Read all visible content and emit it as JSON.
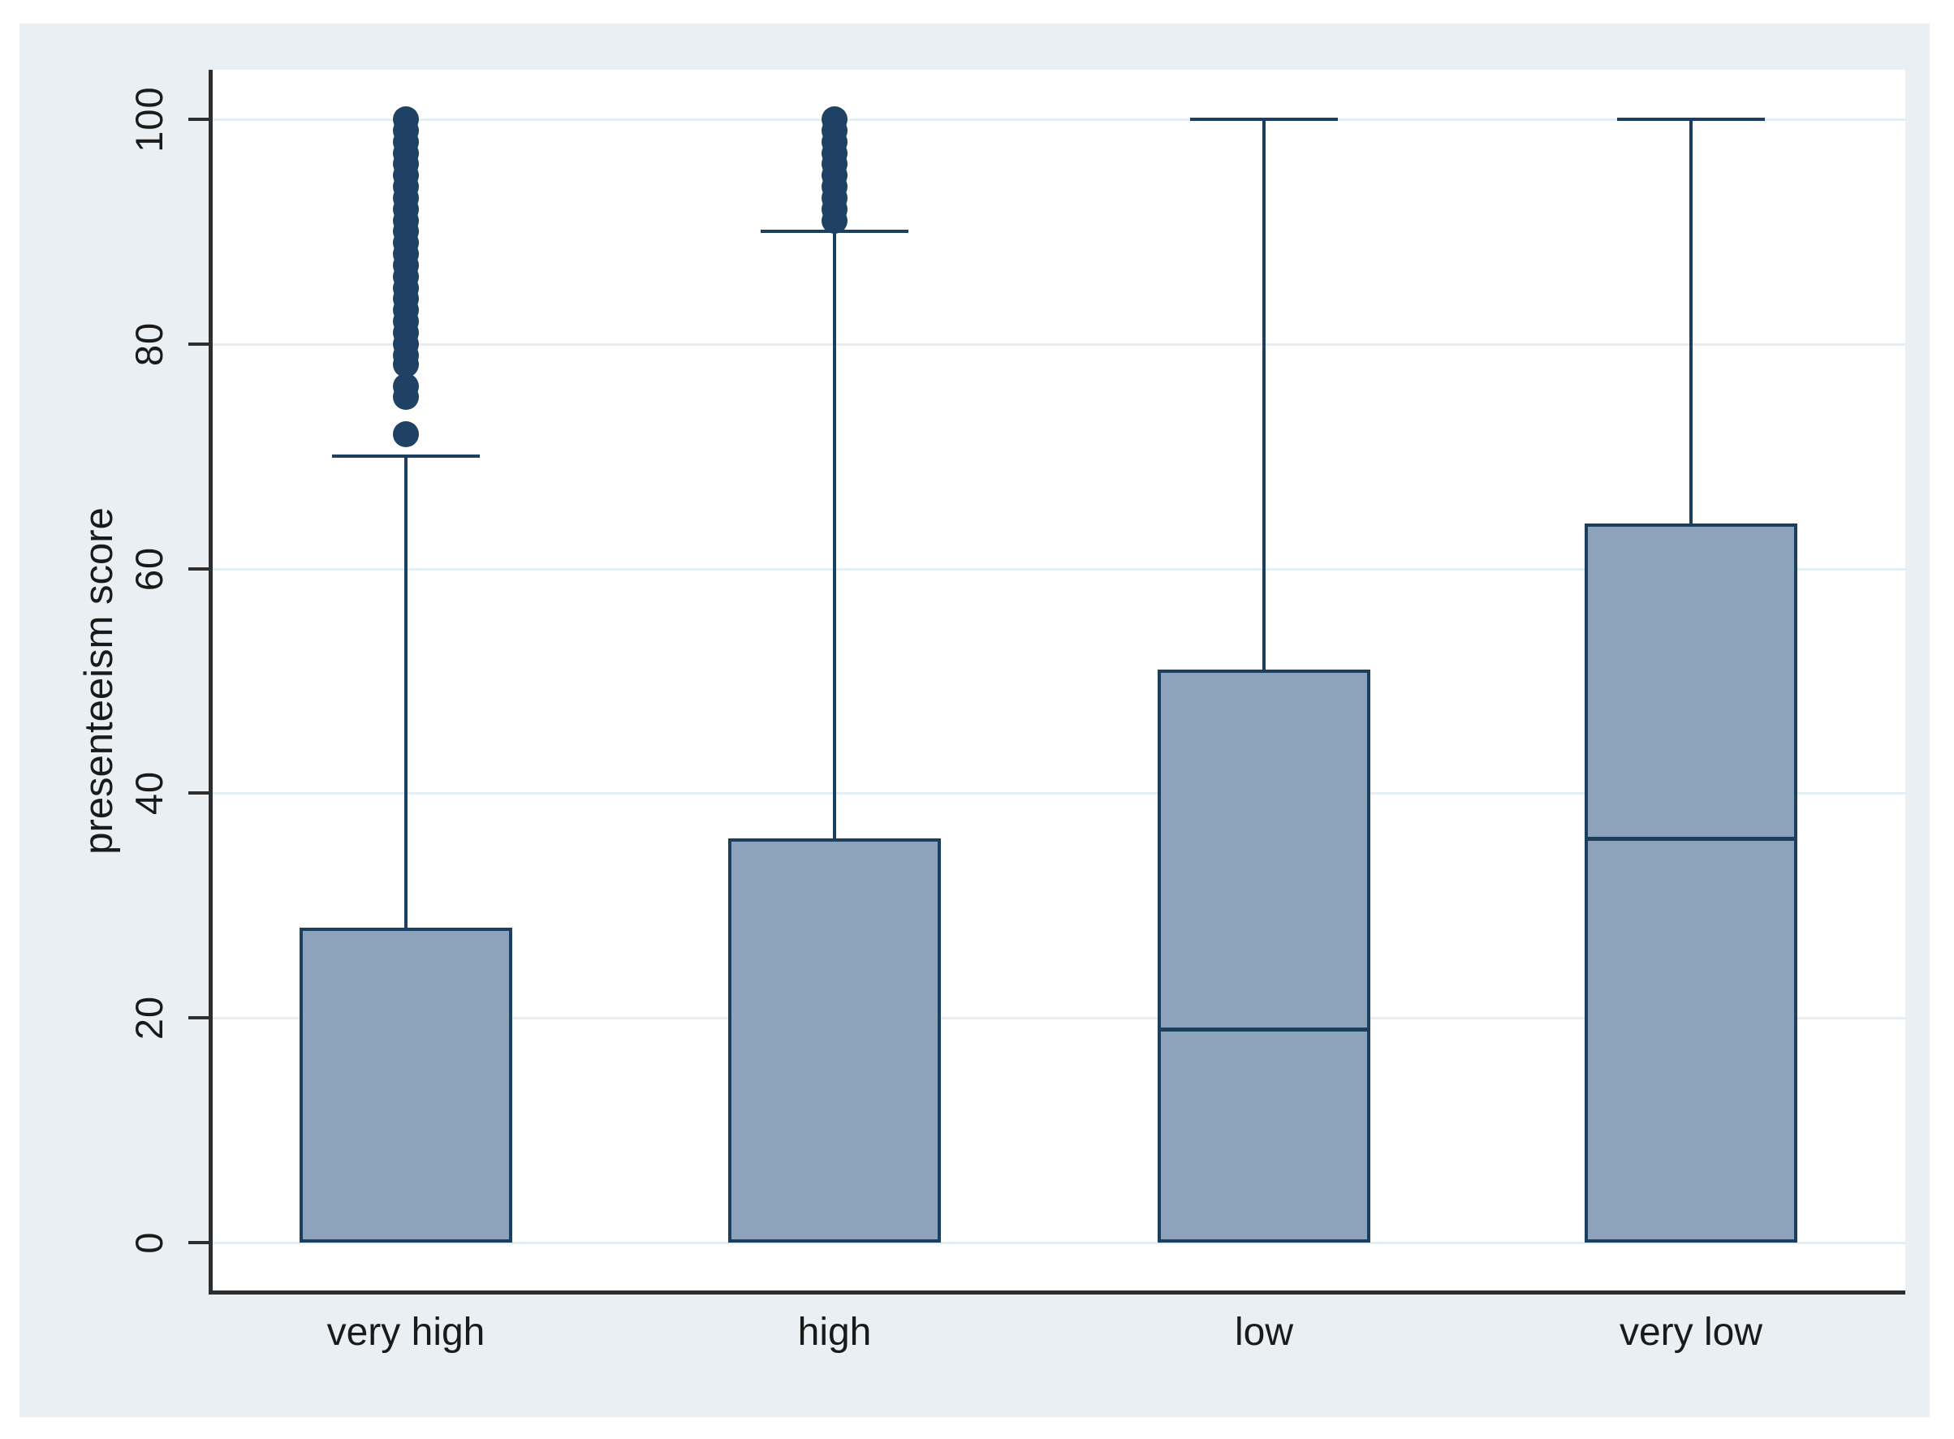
{
  "chart_data": {
    "type": "box",
    "title": "",
    "xlabel": "",
    "ylabel": "presenteeism score",
    "ylim": [
      0,
      100
    ],
    "yticks": [
      0,
      20,
      40,
      60,
      80,
      100
    ],
    "grid": "horizontal",
    "legend": "none",
    "categories": [
      "very high",
      "high",
      "low",
      "very low"
    ],
    "series": [
      {
        "category": "very high",
        "q1": 0,
        "median": 0,
        "q3": 28,
        "whisker_low": 0,
        "whisker_high": 70,
        "outliers": [
          72,
          75.3,
          76.2,
          78.2,
          79,
          80,
          81,
          82,
          83,
          84,
          85,
          86,
          87,
          88,
          89,
          90,
          91,
          92,
          93,
          94,
          95,
          96,
          97,
          98,
          99,
          100
        ]
      },
      {
        "category": "high",
        "q1": 0,
        "median": 0,
        "q3": 36,
        "whisker_low": 0,
        "whisker_high": 90,
        "outliers": [
          91,
          92,
          93,
          94,
          95,
          96,
          97,
          98,
          99,
          100
        ]
      },
      {
        "category": "low",
        "q1": 0,
        "median": 19,
        "q3": 51,
        "whisker_low": 0,
        "whisker_high": 100,
        "outliers": []
      },
      {
        "category": "very low",
        "q1": 0,
        "median": 36,
        "q3": 64,
        "whisker_low": 0,
        "whisker_high": 100,
        "outliers": []
      }
    ],
    "colors": {
      "box_fill": "#8ca3bb",
      "box_border": "#1c3f60",
      "whisker": "#1c3f60",
      "outlier": "#1e4164",
      "grid": "#e3edf2",
      "axis": "#2e2e2e",
      "panel_bg": "#e9eff2",
      "plot_bg": "#ffffff",
      "label": "#1a1a1a"
    }
  }
}
